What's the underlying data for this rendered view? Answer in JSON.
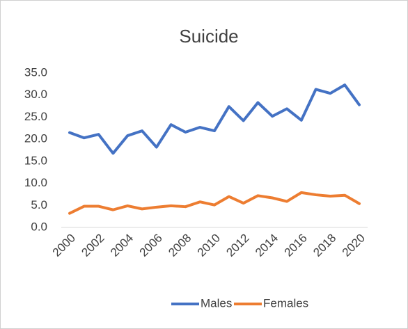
{
  "chart_data": {
    "type": "line",
    "title": "Suicide",
    "x": [
      2000,
      2001,
      2002,
      2003,
      2004,
      2005,
      2006,
      2007,
      2008,
      2009,
      2010,
      2011,
      2012,
      2013,
      2014,
      2015,
      2016,
      2017,
      2018,
      2019,
      2020
    ],
    "xlim": [
      2000,
      2020
    ],
    "xticks": [
      2000,
      2002,
      2004,
      2006,
      2008,
      2010,
      2012,
      2014,
      2016,
      2018,
      2020
    ],
    "series": [
      {
        "name": "Males",
        "color": "#4472c4",
        "values": [
          21.5,
          20.3,
          21.1,
          16.8,
          20.8,
          21.9,
          18.2,
          23.3,
          21.6,
          22.7,
          21.9,
          27.4,
          24.2,
          28.3,
          25.2,
          26.9,
          24.3,
          31.3,
          30.4,
          32.3,
          27.8
        ]
      },
      {
        "name": "Females",
        "color": "#ed7d31",
        "values": [
          3.2,
          4.8,
          4.8,
          4.0,
          4.9,
          4.2,
          4.6,
          4.9,
          4.7,
          5.8,
          5.1,
          7.0,
          5.5,
          7.2,
          6.7,
          5.9,
          7.9,
          7.4,
          7.1,
          7.3,
          5.4
        ]
      }
    ],
    "ylim": [
      0,
      35
    ],
    "yticks": [
      {
        "value": 0,
        "label": "0.0"
      },
      {
        "value": 5,
        "label": "5.0"
      },
      {
        "value": 10,
        "label": "10.0"
      },
      {
        "value": 15,
        "label": "15.0"
      },
      {
        "value": 20,
        "label": "20.0"
      },
      {
        "value": 25,
        "label": "25.0"
      },
      {
        "value": 30,
        "label": "30.0"
      },
      {
        "value": 35,
        "label": "35.0"
      }
    ],
    "legend": "bottom"
  }
}
